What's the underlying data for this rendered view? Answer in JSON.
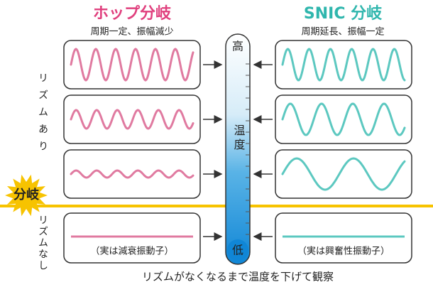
{
  "left": {
    "title": "ホップ分岐",
    "subtitle": "周期一定、振幅減少",
    "note": "（実は減衰振動子）"
  },
  "right": {
    "title": "SNIC 分岐",
    "subtitle": "周期延長、振幅一定",
    "note": "（実は興奮性振動子）"
  },
  "thermometer": {
    "high": "高",
    "label": "温度",
    "low": "低"
  },
  "side": {
    "rhythm": "リズムあり",
    "bifurcation": "分岐",
    "no_rhythm": "リズムなし"
  },
  "caption": "リズムがなくなるまで温度を下げて観察"
}
